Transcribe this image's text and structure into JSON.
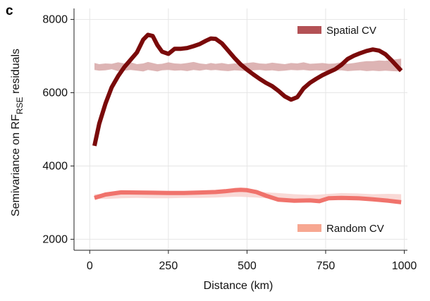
{
  "panel_label": "c",
  "colors": {
    "spatial_line": "#7a0a0a",
    "spatial_band": "#d7a7a7",
    "random_line": "#f0736c",
    "random_band": "#f8d2cf",
    "legend_spatial": "#b35155",
    "legend_random": "#f7a791",
    "grid": "#e6e6e6",
    "axis": "#222222"
  },
  "chart_data": {
    "type": "line",
    "xlabel": "Distance (km)",
    "ylabel_main": "Semivariance on RF",
    "ylabel_sub": "RSE",
    "ylabel_tail": " residuals",
    "xlim": [
      -50,
      1010
    ],
    "ylim": [
      1700,
      8300
    ],
    "x_ticks": [
      0,
      250,
      500,
      750,
      1000
    ],
    "y_ticks": [
      2000,
      4000,
      6000,
      8000
    ],
    "grid": true,
    "legend_placement": "inside-right",
    "legend": [
      {
        "label": "Spatial CV",
        "series": "spatial"
      },
      {
        "label": "Random CV",
        "series": "random"
      }
    ],
    "series": [
      {
        "name": "Spatial CV",
        "key": "spatial",
        "x": [
          15,
          30,
          50,
          70,
          90,
          110,
          130,
          150,
          170,
          185,
          200,
          215,
          230,
          250,
          270,
          290,
          310,
          330,
          350,
          370,
          385,
          400,
          420,
          440,
          460,
          480,
          500,
          520,
          540,
          560,
          580,
          600,
          620,
          640,
          660,
          680,
          700,
          720,
          740,
          760,
          780,
          800,
          820,
          840,
          860,
          880,
          900,
          920,
          940,
          960,
          990
        ],
        "y": [
          4550,
          5150,
          5700,
          6150,
          6450,
          6700,
          6900,
          7100,
          7450,
          7580,
          7550,
          7300,
          7120,
          7060,
          7200,
          7200,
          7220,
          7270,
          7330,
          7420,
          7480,
          7470,
          7350,
          7150,
          6950,
          6770,
          6630,
          6500,
          6380,
          6270,
          6180,
          6050,
          5900,
          5810,
          5880,
          6120,
          6270,
          6380,
          6480,
          6560,
          6640,
          6760,
          6920,
          7010,
          7080,
          7140,
          7180,
          7150,
          7050,
          6880,
          6600
        ],
        "band_upper": [
          6810,
          6780,
          6800,
          6790,
          6830,
          6800,
          6830,
          6780,
          6800,
          6840,
          6810,
          6780,
          6790,
          6830,
          6800,
          6790,
          6810,
          6840,
          6800,
          6780,
          6810,
          6790,
          6810,
          6780,
          6800,
          6790,
          6810,
          6830,
          6800,
          6790,
          6820,
          6800,
          6780,
          6810,
          6800,
          6830,
          6790,
          6800,
          6810,
          6790,
          6800,
          6830,
          6790,
          6810,
          6840,
          6860,
          6860,
          6880,
          6870,
          6900,
          6930
        ],
        "band_lower": [
          6620,
          6600,
          6610,
          6640,
          6590,
          6600,
          6620,
          6600,
          6580,
          6620,
          6600,
          6580,
          6610,
          6620,
          6600,
          6610,
          6590,
          6620,
          6600,
          6630,
          6610,
          6620,
          6600,
          6590,
          6610,
          6600,
          6590,
          6610,
          6620,
          6600,
          6610,
          6590,
          6600,
          6620,
          6610,
          6620,
          6600,
          6610,
          6600,
          6580,
          6600,
          6610,
          6590,
          6600,
          6610,
          6590,
          6600,
          6590,
          6600,
          6590,
          6580
        ]
      },
      {
        "name": "Random CV",
        "key": "random",
        "x": [
          15,
          50,
          100,
          150,
          200,
          250,
          300,
          350,
          400,
          430,
          460,
          480,
          500,
          530,
          560,
          600,
          650,
          700,
          730,
          760,
          800,
          850,
          900,
          950,
          990
        ],
        "y": [
          3130,
          3220,
          3280,
          3275,
          3270,
          3265,
          3265,
          3275,
          3290,
          3310,
          3340,
          3350,
          3340,
          3290,
          3190,
          3080,
          3050,
          3060,
          3040,
          3120,
          3130,
          3120,
          3090,
          3050,
          3010
        ],
        "band_upper": [
          3230,
          3240,
          3280,
          3300,
          3310,
          3300,
          3310,
          3300,
          3310,
          3320,
          3330,
          3330,
          3330,
          3310,
          3280,
          3260,
          3230,
          3210,
          3220,
          3240,
          3260,
          3250,
          3230,
          3240,
          3230
        ],
        "band_lower": [
          3110,
          3100,
          3120,
          3130,
          3120,
          3120,
          3130,
          3130,
          3140,
          3150,
          3160,
          3160,
          3150,
          3140,
          3120,
          3100,
          3080,
          3060,
          3060,
          3080,
          3090,
          3080,
          3060,
          3050,
          3020
        ]
      }
    ]
  }
}
